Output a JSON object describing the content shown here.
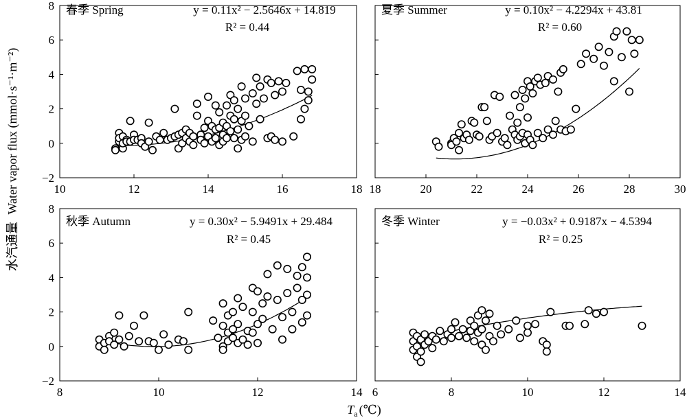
{
  "figure": {
    "y_axis_label_cn": "水汽通量",
    "y_axis_label_en": "Water vapor flux (mmol·s⁻¹·m⁻²)",
    "x_axis_symbol": "T",
    "x_axis_subscript": "a",
    "x_axis_unit": "(℃)"
  },
  "chart_data": [
    {
      "type": "scatter",
      "panel": "春季 Spring",
      "equation": "y = 0.11x² − 2.5646x + 14.819",
      "r2": "R² = 0.44",
      "xlim": [
        10,
        18
      ],
      "ylim": [
        -2,
        8
      ],
      "xticks": [
        10,
        12,
        14,
        16,
        18
      ],
      "yticks": [
        -2,
        0,
        2,
        4,
        6,
        8
      ],
      "fit": {
        "a": 0.11,
        "b": -2.5646,
        "c": 14.819,
        "x_range": [
          11.5,
          16.8
        ]
      },
      "points": [
        [
          11.5,
          -0.3
        ],
        [
          11.5,
          -0.4
        ],
        [
          11.6,
          0.1
        ],
        [
          11.6,
          0.6
        ],
        [
          11.6,
          0.3
        ],
        [
          11.7,
          0.4
        ],
        [
          11.7,
          -0.3
        ],
        [
          11.7,
          0.0
        ],
        [
          11.8,
          0.2
        ],
        [
          11.8,
          0.1
        ],
        [
          11.9,
          1.3
        ],
        [
          11.9,
          0.1
        ],
        [
          12.0,
          0.5
        ],
        [
          12.0,
          0.2
        ],
        [
          12.1,
          0.2
        ],
        [
          12.2,
          0.3
        ],
        [
          12.2,
          0.0
        ],
        [
          12.3,
          -0.2
        ],
        [
          12.4,
          1.2
        ],
        [
          12.4,
          0.1
        ],
        [
          12.5,
          -0.4
        ],
        [
          12.6,
          0.4
        ],
        [
          12.7,
          0.2
        ],
        [
          12.8,
          0.6
        ],
        [
          12.9,
          0.2
        ],
        [
          13.0,
          0.3
        ],
        [
          13.1,
          0.4
        ],
        [
          13.1,
          2.0
        ],
        [
          13.2,
          0.5
        ],
        [
          13.2,
          -0.3
        ],
        [
          13.3,
          0.6
        ],
        [
          13.3,
          0.0
        ],
        [
          13.4,
          0.8
        ],
        [
          13.4,
          0.3
        ],
        [
          13.5,
          0.6
        ],
        [
          13.5,
          0.1
        ],
        [
          13.6,
          0.4
        ],
        [
          13.6,
          -0.1
        ],
        [
          13.7,
          1.6
        ],
        [
          13.7,
          2.3
        ],
        [
          13.8,
          0.5
        ],
        [
          13.8,
          0.2
        ],
        [
          13.9,
          0.9
        ],
        [
          13.9,
          0.0
        ],
        [
          14.0,
          2.7
        ],
        [
          14.0,
          1.3
        ],
        [
          14.0,
          0.4
        ],
        [
          14.1,
          0.1
        ],
        [
          14.1,
          1.0
        ],
        [
          14.2,
          2.2
        ],
        [
          14.2,
          0.8
        ],
        [
          14.2,
          0.3
        ],
        [
          14.3,
          1.8
        ],
        [
          14.3,
          0.9
        ],
        [
          14.3,
          -0.1
        ],
        [
          14.4,
          1.2
        ],
        [
          14.4,
          0.5
        ],
        [
          14.4,
          0.1
        ],
        [
          14.5,
          2.2
        ],
        [
          14.5,
          1.0
        ],
        [
          14.5,
          0.3
        ],
        [
          14.6,
          1.6
        ],
        [
          14.6,
          0.7
        ],
        [
          14.6,
          2.8
        ],
        [
          14.7,
          2.5
        ],
        [
          14.7,
          1.4
        ],
        [
          14.7,
          0.3
        ],
        [
          14.8,
          2.0
        ],
        [
          14.8,
          0.8
        ],
        [
          14.8,
          -0.3
        ],
        [
          14.9,
          3.3
        ],
        [
          14.9,
          1.3
        ],
        [
          14.9,
          0.2
        ],
        [
          15.0,
          2.6
        ],
        [
          15.0,
          1.6
        ],
        [
          15.0,
          0.4
        ],
        [
          15.1,
          1.0
        ],
        [
          15.2,
          2.9
        ],
        [
          15.2,
          0.1
        ],
        [
          15.3,
          3.8
        ],
        [
          15.3,
          2.3
        ],
        [
          15.4,
          3.3
        ],
        [
          15.4,
          1.4
        ],
        [
          15.5,
          2.6
        ],
        [
          15.6,
          3.7
        ],
        [
          15.6,
          0.3
        ],
        [
          15.7,
          3.5
        ],
        [
          15.7,
          0.4
        ],
        [
          15.8,
          2.8
        ],
        [
          15.8,
          0.2
        ],
        [
          15.9,
          3.6
        ],
        [
          16.0,
          3.0
        ],
        [
          16.0,
          0.1
        ],
        [
          16.1,
          3.5
        ],
        [
          16.3,
          0.4
        ],
        [
          16.4,
          4.2
        ],
        [
          16.5,
          3.1
        ],
        [
          16.5,
          1.4
        ],
        [
          16.6,
          4.3
        ],
        [
          16.6,
          2.0
        ],
        [
          16.7,
          2.5
        ],
        [
          16.7,
          3.0
        ],
        [
          16.8,
          4.3
        ],
        [
          16.8,
          3.7
        ]
      ]
    },
    {
      "type": "scatter",
      "panel": "夏季 Summer",
      "equation": "y = 0.10x² − 4.2294x + 43.81",
      "r2": "R² = 0.60",
      "xlim": [
        18,
        30
      ],
      "ylim": [
        -2,
        8
      ],
      "xticks": [
        18,
        20,
        22,
        24,
        26,
        28,
        30
      ],
      "yticks": [
        -2,
        0,
        2,
        4,
        6,
        8
      ],
      "fit": {
        "a": 0.1,
        "b": -4.2294,
        "c": 43.81,
        "x_range": [
          20.4,
          28.4
        ]
      },
      "points": [
        [
          20.4,
          0.1
        ],
        [
          20.5,
          -0.2
        ],
        [
          21.0,
          0.0
        ],
        [
          21.0,
          -0.1
        ],
        [
          21.1,
          0.3
        ],
        [
          21.2,
          0.1
        ],
        [
          21.3,
          -0.4
        ],
        [
          21.3,
          0.6
        ],
        [
          21.4,
          1.1
        ],
        [
          21.5,
          0.3
        ],
        [
          21.6,
          0.5
        ],
        [
          21.7,
          0.2
        ],
        [
          21.8,
          1.3
        ],
        [
          21.9,
          1.2
        ],
        [
          22.0,
          0.5
        ],
        [
          22.1,
          0.4
        ],
        [
          22.2,
          2.1
        ],
        [
          22.3,
          2.1
        ],
        [
          22.4,
          1.3
        ],
        [
          22.5,
          0.2
        ],
        [
          22.6,
          0.4
        ],
        [
          22.7,
          2.8
        ],
        [
          22.8,
          0.6
        ],
        [
          22.9,
          2.7
        ],
        [
          23.0,
          0.1
        ],
        [
          23.1,
          0.3
        ],
        [
          23.2,
          -0.1
        ],
        [
          23.3,
          1.6
        ],
        [
          23.4,
          0.8
        ],
        [
          23.5,
          2.8
        ],
        [
          23.5,
          0.5
        ],
        [
          23.6,
          1.2
        ],
        [
          23.6,
          0.2
        ],
        [
          23.7,
          2.1
        ],
        [
          23.7,
          0.4
        ],
        [
          23.8,
          3.1
        ],
        [
          23.8,
          0.6
        ],
        [
          23.9,
          2.6
        ],
        [
          23.9,
          0.0
        ],
        [
          24.0,
          3.6
        ],
        [
          24.0,
          1.5
        ],
        [
          24.0,
          0.5
        ],
        [
          24.1,
          3.3
        ],
        [
          24.1,
          0.2
        ],
        [
          24.2,
          2.9
        ],
        [
          24.2,
          -0.1
        ],
        [
          24.3,
          3.6
        ],
        [
          24.4,
          3.8
        ],
        [
          24.4,
          0.6
        ],
        [
          24.5,
          3.4
        ],
        [
          24.6,
          0.3
        ],
        [
          24.7,
          3.5
        ],
        [
          24.8,
          3.9
        ],
        [
          24.8,
          0.8
        ],
        [
          25.0,
          3.7
        ],
        [
          25.0,
          0.5
        ],
        [
          25.1,
          1.3
        ],
        [
          25.2,
          3.0
        ],
        [
          25.3,
          4.1
        ],
        [
          25.3,
          0.8
        ],
        [
          25.4,
          4.3
        ],
        [
          25.5,
          0.7
        ],
        [
          25.7,
          0.8
        ],
        [
          25.9,
          2.0
        ],
        [
          26.1,
          4.6
        ],
        [
          26.3,
          5.2
        ],
        [
          26.6,
          4.9
        ],
        [
          26.8,
          5.6
        ],
        [
          27.0,
          4.5
        ],
        [
          27.2,
          5.3
        ],
        [
          27.4,
          3.6
        ],
        [
          27.4,
          6.2
        ],
        [
          27.5,
          6.5
        ],
        [
          27.7,
          5.0
        ],
        [
          27.9,
          6.5
        ],
        [
          28.0,
          3.0
        ],
        [
          28.1,
          6.0
        ],
        [
          28.2,
          5.2
        ],
        [
          28.4,
          6.0
        ]
      ]
    },
    {
      "type": "scatter",
      "panel": "秋季 Autumn",
      "equation": "y = 0.30x² − 5.9491x + 29.484",
      "r2": "R² = 0.45",
      "xlim": [
        8,
        14
      ],
      "ylim": [
        -2,
        8
      ],
      "xticks": [
        8,
        10,
        12,
        14
      ],
      "yticks": [
        -2,
        0,
        2,
        4,
        6,
        8
      ],
      "fit": {
        "a": 0.3,
        "b": -5.9491,
        "c": 29.484,
        "x_range": [
          8.8,
          13.0
        ]
      },
      "points": [
        [
          8.8,
          0.4
        ],
        [
          8.8,
          0.0
        ],
        [
          8.9,
          0.2
        ],
        [
          8.9,
          -0.2
        ],
        [
          9.0,
          0.6
        ],
        [
          9.0,
          0.3
        ],
        [
          9.1,
          0.1
        ],
        [
          9.1,
          0.8
        ],
        [
          9.2,
          0.4
        ],
        [
          9.2,
          1.8
        ],
        [
          9.3,
          0.0
        ],
        [
          9.4,
          0.6
        ],
        [
          9.5,
          1.2
        ],
        [
          9.6,
          0.3
        ],
        [
          9.7,
          1.8
        ],
        [
          9.8,
          0.3
        ],
        [
          9.9,
          0.2
        ],
        [
          10.0,
          -0.2
        ],
        [
          10.1,
          0.7
        ],
        [
          10.2,
          0.1
        ],
        [
          10.4,
          0.4
        ],
        [
          10.5,
          0.3
        ],
        [
          10.6,
          -0.2
        ],
        [
          10.6,
          2.0
        ],
        [
          11.1,
          1.5
        ],
        [
          11.2,
          0.5
        ],
        [
          11.3,
          2.5
        ],
        [
          11.3,
          1.2
        ],
        [
          11.3,
          0.0
        ],
        [
          11.3,
          -0.2
        ],
        [
          11.4,
          1.8
        ],
        [
          11.4,
          0.8
        ],
        [
          11.4,
          0.3
        ],
        [
          11.5,
          2.0
        ],
        [
          11.5,
          1.0
        ],
        [
          11.5,
          0.5
        ],
        [
          11.6,
          0.2
        ],
        [
          11.6,
          2.8
        ],
        [
          11.6,
          1.3
        ],
        [
          11.7,
          0.4
        ],
        [
          11.7,
          2.3
        ],
        [
          11.8,
          0.9
        ],
        [
          11.8,
          0.1
        ],
        [
          11.9,
          3.4
        ],
        [
          11.9,
          2.0
        ],
        [
          11.9,
          0.8
        ],
        [
          12.0,
          3.2
        ],
        [
          12.0,
          1.3
        ],
        [
          12.0,
          0.2
        ],
        [
          12.1,
          2.5
        ],
        [
          12.1,
          1.6
        ],
        [
          12.2,
          4.2
        ],
        [
          12.2,
          2.9
        ],
        [
          12.3,
          1.0
        ],
        [
          12.4,
          4.7
        ],
        [
          12.4,
          2.7
        ],
        [
          12.5,
          1.7
        ],
        [
          12.5,
          0.4
        ],
        [
          12.6,
          4.5
        ],
        [
          12.6,
          3.1
        ],
        [
          12.7,
          2.0
        ],
        [
          12.7,
          1.0
        ],
        [
          12.8,
          3.4
        ],
        [
          12.8,
          4.1
        ],
        [
          12.9,
          2.7
        ],
        [
          12.9,
          1.4
        ],
        [
          12.9,
          4.6
        ],
        [
          13.0,
          5.2
        ],
        [
          13.0,
          3.0
        ],
        [
          13.0,
          1.8
        ],
        [
          13.0,
          4.0
        ]
      ]
    },
    {
      "type": "scatter",
      "panel": "冬季 Winter",
      "equation": "y = −0.03x² + 0.9187x − 4.5394",
      "r2": "R² = 0.25",
      "xlim": [
        6,
        14
      ],
      "ylim": [
        -2,
        8
      ],
      "xticks": [
        6,
        8,
        10,
        12,
        14
      ],
      "yticks": [
        -2,
        0,
        2,
        4,
        6,
        8
      ],
      "fit": {
        "a": -0.03,
        "b": 0.9187,
        "c": -4.5394,
        "x_range": [
          7.0,
          13.0
        ]
      },
      "points": [
        [
          7.0,
          0.8
        ],
        [
          7.0,
          0.3
        ],
        [
          7.0,
          -0.2
        ],
        [
          7.1,
          0.6
        ],
        [
          7.1,
          0.0
        ],
        [
          7.1,
          -0.6
        ],
        [
          7.2,
          0.4
        ],
        [
          7.2,
          -0.3
        ],
        [
          7.2,
          -0.9
        ],
        [
          7.3,
          0.7
        ],
        [
          7.3,
          0.1
        ],
        [
          7.4,
          0.3
        ],
        [
          7.5,
          -0.1
        ],
        [
          7.5,
          0.6
        ],
        [
          7.6,
          0.4
        ],
        [
          7.7,
          0.9
        ],
        [
          7.8,
          0.3
        ],
        [
          7.9,
          0.7
        ],
        [
          8.0,
          1.0
        ],
        [
          8.0,
          0.5
        ],
        [
          8.1,
          1.4
        ],
        [
          8.2,
          0.6
        ],
        [
          8.3,
          1.0
        ],
        [
          8.4,
          0.5
        ],
        [
          8.5,
          1.5
        ],
        [
          8.5,
          0.9
        ],
        [
          8.6,
          1.2
        ],
        [
          8.6,
          0.3
        ],
        [
          8.7,
          1.8
        ],
        [
          8.7,
          0.8
        ],
        [
          8.8,
          2.1
        ],
        [
          8.8,
          1.0
        ],
        [
          8.8,
          0.1
        ],
        [
          8.9,
          1.5
        ],
        [
          8.9,
          -0.2
        ],
        [
          9.0,
          1.9
        ],
        [
          9.0,
          0.6
        ],
        [
          9.1,
          0.3
        ],
        [
          9.2,
          1.2
        ],
        [
          9.3,
          0.7
        ],
        [
          9.5,
          1.0
        ],
        [
          9.7,
          1.5
        ],
        [
          9.8,
          0.5
        ],
        [
          10.0,
          1.2
        ],
        [
          10.0,
          0.8
        ],
        [
          10.2,
          1.3
        ],
        [
          10.4,
          0.3
        ],
        [
          10.5,
          0.1
        ],
        [
          10.5,
          -0.3
        ],
        [
          10.6,
          2.0
        ],
        [
          11.0,
          1.2
        ],
        [
          11.1,
          1.2
        ],
        [
          11.5,
          1.3
        ],
        [
          11.6,
          2.1
        ],
        [
          11.8,
          1.9
        ],
        [
          12.0,
          2.0
        ],
        [
          13.0,
          1.2
        ]
      ]
    }
  ]
}
